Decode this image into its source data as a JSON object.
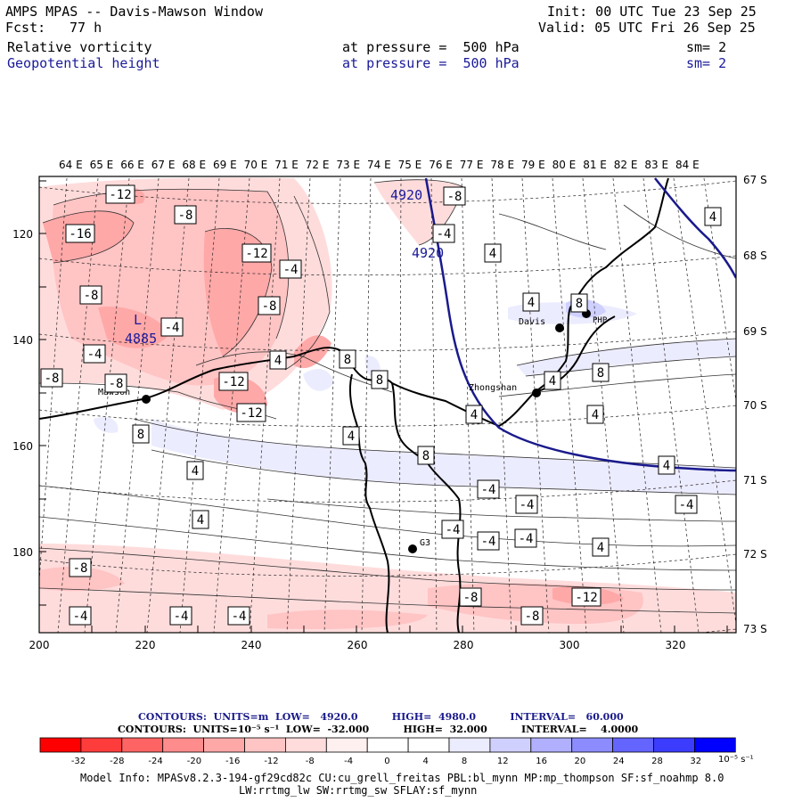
{
  "header": {
    "title": "AMPS MPAS -- Davis-Mawson Window",
    "fcst_label": "Fcst:",
    "fcst_value": "77 h",
    "init": "Init: 00 UTC Tue 23 Sep 25",
    "valid": "Valid: 05 UTC Fri 26 Sep 25",
    "field1": {
      "name": "Relative vorticity",
      "level": "at pressure =  500 hPa",
      "sm": "sm= 2"
    },
    "field2": {
      "name": "Geopotential height",
      "level": "at pressure =  500 hPa",
      "sm": "sm= 2"
    }
  },
  "axes": {
    "top_lon": [
      "64 E",
      "65 E",
      "66 E",
      "67 E",
      "68 E",
      "69 E",
      "70 E",
      "71 E",
      "72 E",
      "73 E",
      "74 E",
      "75 E",
      "76 E",
      "77 E",
      "78 E",
      "79 E",
      "80 E",
      "81 E",
      "82 E",
      "83 E",
      "84 E"
    ],
    "right_lat": [
      "67 S",
      "68 S",
      "69 S",
      "70 S",
      "71 S",
      "72 S",
      "73 S"
    ],
    "bottom_x": [
      "200",
      "220",
      "240",
      "260",
      "280",
      "300",
      "320"
    ],
    "left_y": [
      "120",
      "140",
      "160",
      "180"
    ]
  },
  "stations": [
    {
      "name": "Mawson"
    },
    {
      "name": "Davis"
    },
    {
      "name": "Zhongshan"
    },
    {
      "name": "G3"
    },
    {
      "name": "PHP"
    }
  ],
  "height_labels": [
    "4920",
    "4920"
  ],
  "low": {
    "mark": "L",
    "value": "4885"
  },
  "vort_labels": [
    "-12",
    "-16",
    "-8",
    "-12",
    "-4",
    "-8",
    "-8",
    "-4",
    "-4",
    "-8",
    "-12",
    "-12",
    "-8",
    "8",
    "4",
    "8",
    "-4",
    "4",
    "4",
    "8",
    "4",
    "4",
    "4",
    "8",
    "8",
    "4",
    "4",
    "-4",
    "-4",
    "-4",
    "-4",
    "4",
    "-4",
    "-4",
    "-8",
    "-4",
    "-4",
    "-4",
    "-8",
    "-12",
    "-8",
    "-8",
    "4",
    "4",
    "4",
    "8"
  ],
  "colorbar": {
    "line1": "CONTOURS:  UNITS=m  LOW=   4920.0          HIGH=  4980.0          INTERVAL=   60.000",
    "line2": "CONTOURS:  UNITS=10⁻⁵ s⁻¹  LOW=  -32.000          HIGH=  32.000          INTERVAL=    4.0000",
    "ticks": [
      "-32",
      "-28",
      "-24",
      "-20",
      "-16",
      "-12",
      "-8",
      "-4",
      "0",
      "4",
      "8",
      "12",
      "16",
      "20",
      "24",
      "28",
      "32"
    ],
    "units": "10⁻⁵ s⁻¹",
    "colors": [
      "#ff0000",
      "#ff3c3c",
      "#ff6464",
      "#ff8c8c",
      "#ffa8a8",
      "#ffc4c4",
      "#ffdcdc",
      "#fff0f0",
      "#ffffff",
      "#ffffff",
      "#ececff",
      "#d0d0ff",
      "#b0b0ff",
      "#8c8cff",
      "#6464ff",
      "#3c3cff",
      "#0000ff"
    ]
  },
  "model_info": {
    "line1": "Model Info: MPASv8.2.3-194-gf29cd82c CU:cu_grell_freitas PBL:bl_mynn MP:mp_thompson SF:sf_noahmp 8.0",
    "line2": "LW:rrtmg_lw SW:rrtmg_sw SFLAY:sf_mynn"
  }
}
